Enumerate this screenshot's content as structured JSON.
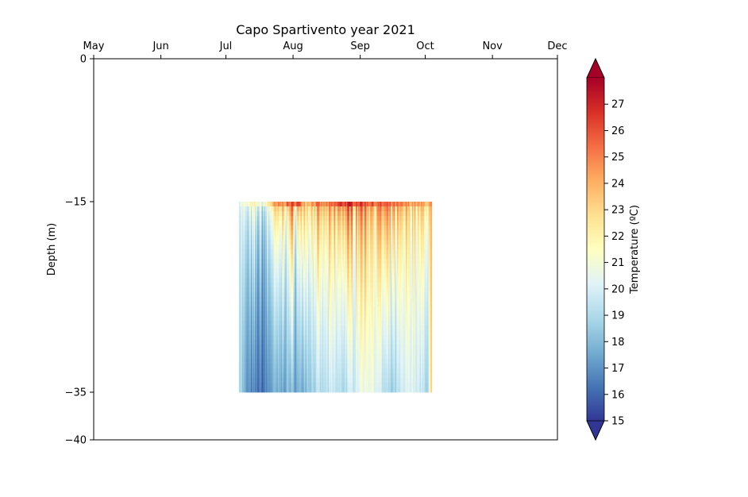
{
  "chart_data": {
    "type": "heatmap",
    "title": "Capo Spartivento year 2021",
    "ylabel": "Depth (m)",
    "xlabel": "",
    "x_axis": {
      "position": "top",
      "ticks": [
        "May",
        "Jun",
        "Jul",
        "Aug",
        "Sep",
        "Oct",
        "Nov",
        "Dec"
      ],
      "range": [
        "2021-05-01",
        "2021-12-01"
      ]
    },
    "y_axis": {
      "ticks": [
        0,
        -15,
        -35,
        -40
      ],
      "ylim": [
        -40,
        0
      ]
    },
    "data_extent": {
      "x_start": "2021-07-07",
      "x_end": "2021-10-04",
      "depth_top": -15,
      "depth_bottom": -35
    },
    "colorbar": {
      "label": "Temperature (ºC)",
      "ticks": [
        15,
        16,
        17,
        18,
        19,
        20,
        21,
        22,
        23,
        24,
        25,
        26,
        27
      ],
      "vmin": 15,
      "vmax": 28,
      "colormap": "RdYlBu_r",
      "extend": "both"
    },
    "profile_samples": [
      {
        "date": "2021-07-07",
        "surface": 21.0,
        "bottom": 19.5
      },
      {
        "date": "2021-07-10",
        "surface": 20.5,
        "bottom": 17.0
      },
      {
        "date": "2021-07-14",
        "surface": 21.5,
        "bottom": 16.5
      },
      {
        "date": "2021-07-18",
        "surface": 20.5,
        "bottom": 16.2
      },
      {
        "date": "2021-07-22",
        "surface": 23.5,
        "bottom": 17.5
      },
      {
        "date": "2021-07-26",
        "surface": 24.5,
        "bottom": 17.5
      },
      {
        "date": "2021-07-30",
        "surface": 25.5,
        "bottom": 18.0
      },
      {
        "date": "2021-08-03",
        "surface": 26.0,
        "bottom": 17.5
      },
      {
        "date": "2021-08-07",
        "surface": 24.0,
        "bottom": 18.5
      },
      {
        "date": "2021-08-11",
        "surface": 25.0,
        "bottom": 19.0
      },
      {
        "date": "2021-08-15",
        "surface": 24.5,
        "bottom": 19.0
      },
      {
        "date": "2021-08-19",
        "surface": 25.0,
        "bottom": 19.5
      },
      {
        "date": "2021-08-23",
        "surface": 26.5,
        "bottom": 19.0
      },
      {
        "date": "2021-08-27",
        "surface": 26.5,
        "bottom": 19.5
      },
      {
        "date": "2021-08-31",
        "surface": 26.5,
        "bottom": 20.5
      },
      {
        "date": "2021-09-04",
        "surface": 26.0,
        "bottom": 21.0
      },
      {
        "date": "2021-09-08",
        "surface": 25.5,
        "bottom": 20.5
      },
      {
        "date": "2021-09-12",
        "surface": 25.5,
        "bottom": 19.0
      },
      {
        "date": "2021-09-16",
        "surface": 25.0,
        "bottom": 18.5
      },
      {
        "date": "2021-09-20",
        "surface": 24.5,
        "bottom": 19.5
      },
      {
        "date": "2021-09-24",
        "surface": 24.5,
        "bottom": 20.5
      },
      {
        "date": "2021-09-28",
        "surface": 24.0,
        "bottom": 19.5
      },
      {
        "date": "2021-10-02",
        "surface": 24.0,
        "bottom": 19.0
      },
      {
        "date": "2021-10-04",
        "surface": 24.0,
        "bottom": 24.0
      }
    ]
  }
}
